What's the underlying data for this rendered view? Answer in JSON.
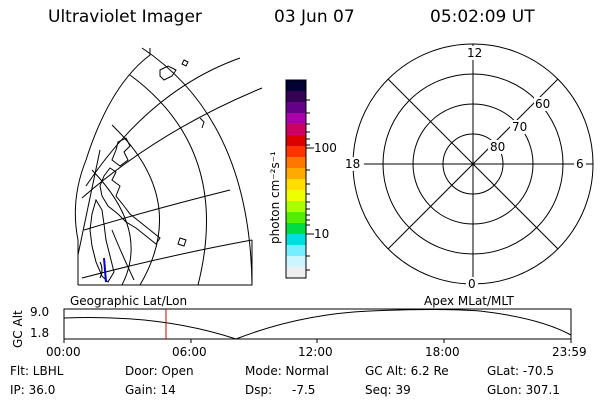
{
  "header": {
    "title": "Ultraviolet Imager",
    "date": "03 Jun 07",
    "time": "05:02:09 UT"
  },
  "colorbar": {
    "unit_label": "photon cm⁻²s⁻¹",
    "tick_labels": [
      "100",
      "10"
    ],
    "colors": [
      "#000033",
      "#330055",
      "#660088",
      "#aa00aa",
      "#cc0066",
      "#dd0000",
      "#ff3300",
      "#ff7700",
      "#ffaa00",
      "#ffdd00",
      "#eeff00",
      "#aaff00",
      "#55ee00",
      "#00dd44",
      "#00dddd",
      "#77eeff",
      "#ccf6ff",
      "#eeeeee"
    ]
  },
  "left_panel": {
    "label": "Geographic Lat/Lon"
  },
  "right_panel": {
    "label": "Apex MLat/MLT",
    "mlt_labels": {
      "top": "12",
      "left": "18",
      "right": "6",
      "bottom": "0"
    },
    "mlat_labels": [
      "60",
      "70",
      "80"
    ]
  },
  "altitude_plot": {
    "axis_label": "GC Alt",
    "y_labels": [
      "9.0",
      "1.8"
    ],
    "x_labels": [
      "00:00",
      "06:00",
      "12:00",
      "18:00",
      "23:59"
    ],
    "marker_color": "#cc0000"
  },
  "info": {
    "filter": "Flt: LBHL",
    "ip": "IP: 36.0",
    "door": "Door: Open",
    "gain": "Gain: 14",
    "mode": "Mode: Normal",
    "dsp": "Dsp:",
    "dsp_value": "-7.5",
    "gc_alt": "GC Alt: 6.2 Re",
    "seq": "Seq: 39",
    "glat": "GLat: -70.5",
    "glon": "GLon: 307.1"
  }
}
